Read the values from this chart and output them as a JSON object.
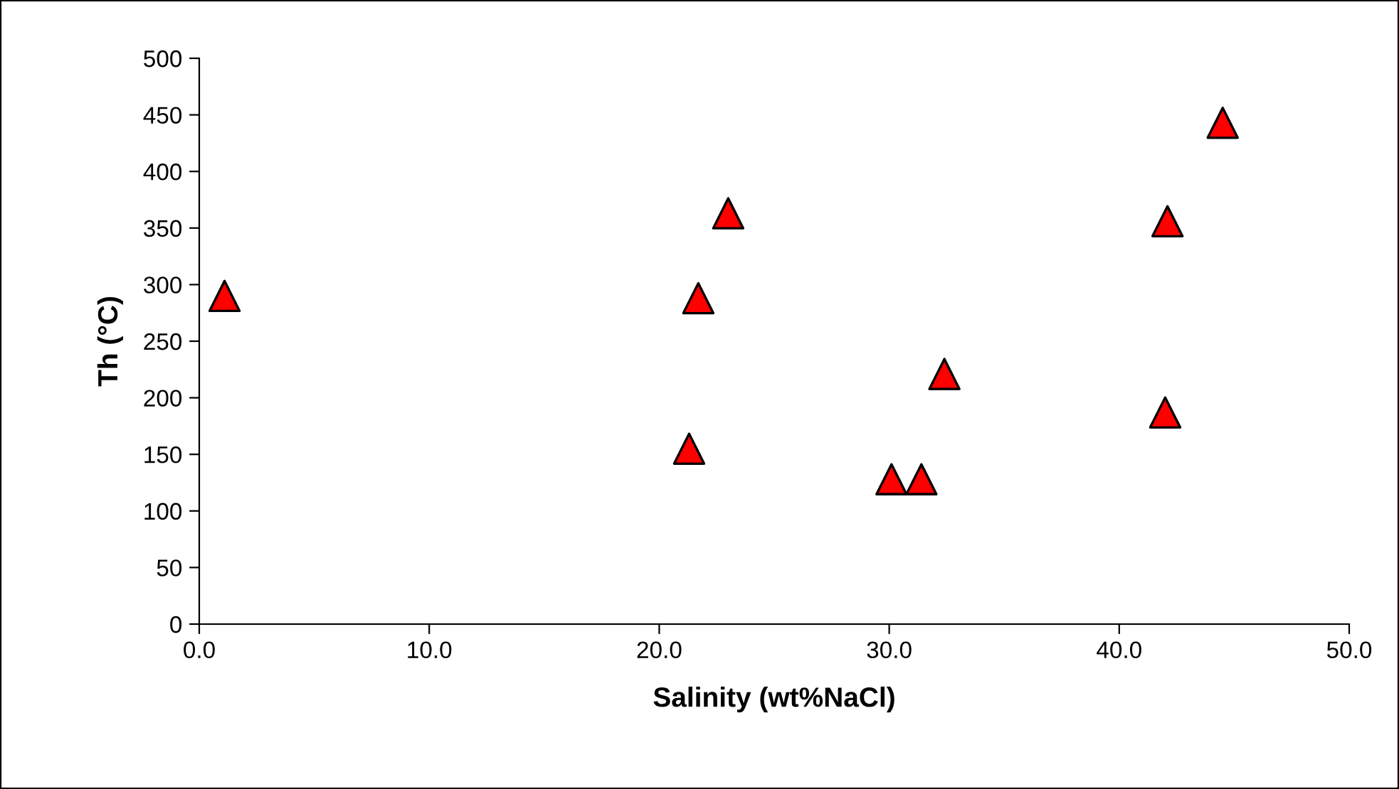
{
  "chart_data": {
    "type": "scatter",
    "xlabel": "Salinity (wt%NaCl)",
    "ylabel": "Th (°C)",
    "series": [
      {
        "color": "#ff0000",
        "marker": "triangle",
        "x": [
          1.1,
          21.7,
          23.0,
          21.3,
          30.1,
          31.4,
          32.4,
          42.0,
          42.1,
          44.5
        ],
        "values": [
          290,
          288,
          363,
          155,
          128,
          128,
          221,
          187,
          356,
          443
        ]
      }
    ],
    "xlim": [
      0,
      50
    ],
    "xticks": [
      {
        "value": 0,
        "label": "0.0"
      },
      {
        "value": 10,
        "label": "10.0"
      },
      {
        "value": 20,
        "label": "20.0"
      },
      {
        "value": 30,
        "label": "30.0"
      },
      {
        "value": 40,
        "label": "40.0"
      },
      {
        "value": 50,
        "label": "50.0"
      }
    ],
    "ylim": [
      0,
      500
    ],
    "yticks": [
      0,
      50,
      100,
      150,
      200,
      250,
      300,
      350,
      400,
      450,
      500
    ],
    "grid": false,
    "legend": false
  }
}
